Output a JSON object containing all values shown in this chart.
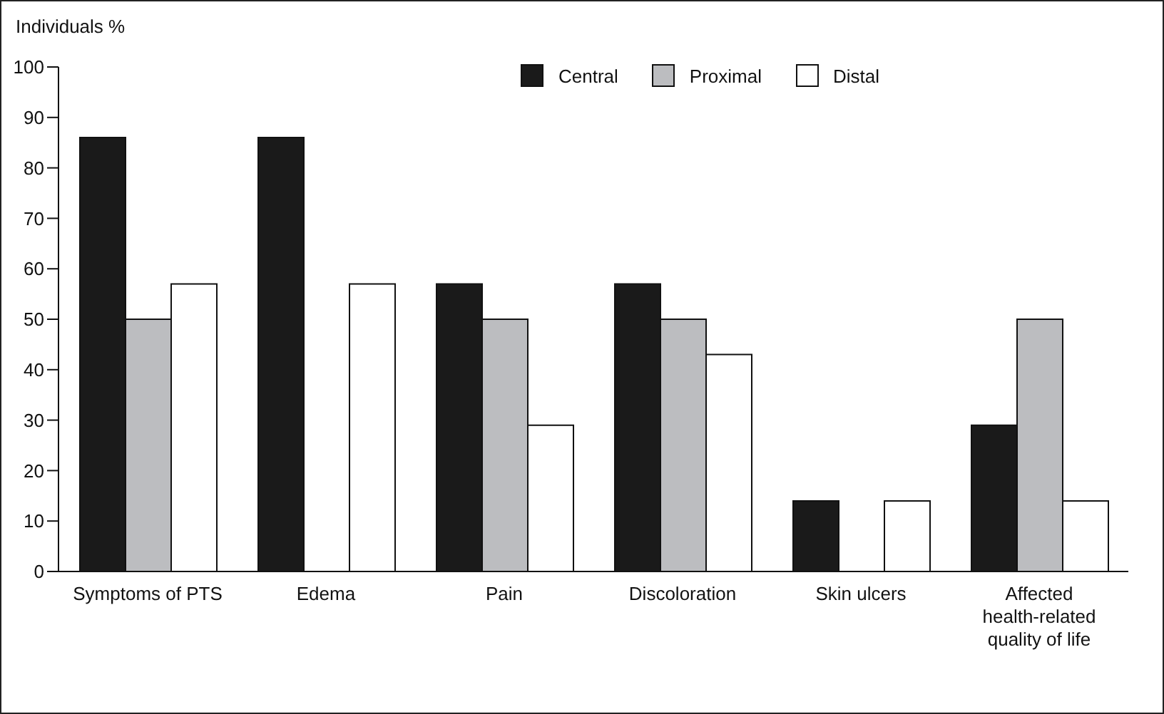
{
  "chart_data": {
    "type": "bar",
    "ylabel": "Individuals %",
    "categories": [
      "Symptoms of PTS",
      "Edema",
      "Pain",
      "Discoloration",
      "Skin ulcers",
      "Affected health-related quality of life"
    ],
    "series": [
      {
        "name": "Central",
        "color": "#1a1a1a",
        "values": [
          86,
          86,
          57,
          57,
          14,
          29
        ]
      },
      {
        "name": "Proximal",
        "color": "#bcbdc0",
        "values": [
          50,
          0,
          50,
          50,
          0,
          50
        ]
      },
      {
        "name": "Distal",
        "color": "#ffffff",
        "values": [
          57,
          57,
          29,
          43,
          14,
          14
        ]
      }
    ],
    "ylim": [
      0,
      100
    ],
    "yticks": [
      0,
      10,
      20,
      30,
      40,
      50,
      60,
      70,
      80,
      90,
      100
    ],
    "grid": false,
    "legend": "top"
  }
}
